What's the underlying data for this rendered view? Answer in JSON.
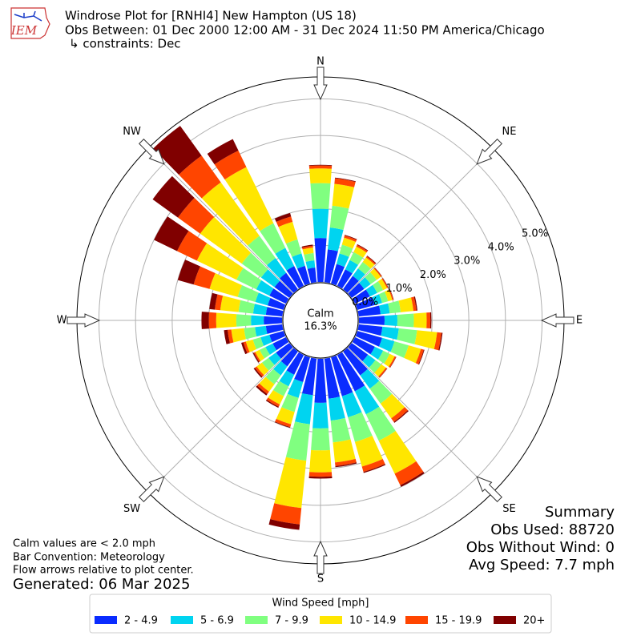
{
  "chart_data": {
    "type": "windrose",
    "title": "Windrose Plot for [RNHI4] New Hampton (US 18)",
    "subtitle": "Obs Between: 01 Dec 2000 12:00 AM - 31 Dec 2024 11:50 PM America/Chicago",
    "constraints": "↳ constraints: Dec",
    "logo_text": "IEM",
    "compass": [
      "N",
      "NE",
      "E",
      "SE",
      "S",
      "SW",
      "W",
      "NW"
    ],
    "x": [
      0,
      10,
      20,
      30,
      40,
      50,
      60,
      70,
      80,
      90,
      100,
      110,
      120,
      130,
      140,
      150,
      160,
      170,
      180,
      190,
      200,
      210,
      220,
      230,
      240,
      250,
      260,
      270,
      280,
      290,
      300,
      310,
      320,
      330,
      340,
      350
    ],
    "ylim": [
      0,
      5.6
    ],
    "yticks": [
      {
        "value": 0,
        "label": "0.0%"
      },
      {
        "value": 1,
        "label": "1.0%"
      },
      {
        "value": 2,
        "label": "2.0%"
      },
      {
        "value": 3,
        "label": "3.0%"
      },
      {
        "value": 4,
        "label": "4.0%"
      },
      {
        "value": 5,
        "label": "5.0%"
      }
    ],
    "grid": true,
    "calm_label": "Calm",
    "calm_value": 16.3,
    "calm_value_label": "16.3%",
    "legend_title": "Wind Speed [mph]",
    "series": [
      {
        "name": "2 - 4.9",
        "color": "#0a2cff",
        "values": [
          1.2,
          0.9,
          0.55,
          0.5,
          0.45,
          0.42,
          0.45,
          0.5,
          0.6,
          0.7,
          0.65,
          0.7,
          0.6,
          0.55,
          0.8,
          1.1,
          1.1,
          1.1,
          1.2,
          1.0,
          0.7,
          0.6,
          0.5,
          0.45,
          0.4,
          0.4,
          0.45,
          0.5,
          0.45,
          0.45,
          0.5,
          0.5,
          0.55,
          0.6,
          0.5,
          0.4
        ]
      },
      {
        "name": "5 - 6.9",
        "color": "#00d4f0",
        "values": [
          0.8,
          0.6,
          0.3,
          0.28,
          0.25,
          0.22,
          0.22,
          0.2,
          0.25,
          0.35,
          0.45,
          0.35,
          0.25,
          0.25,
          0.45,
          0.7,
          0.6,
          0.6,
          0.7,
          0.8,
          0.45,
          0.35,
          0.3,
          0.25,
          0.22,
          0.25,
          0.3,
          0.35,
          0.35,
          0.35,
          0.4,
          0.45,
          0.5,
          0.55,
          0.35,
          0.2
        ]
      },
      {
        "name": "7 - 9.9",
        "color": "#80ff80",
        "values": [
          0.7,
          0.6,
          0.25,
          0.24,
          0.22,
          0.2,
          0.18,
          0.17,
          0.3,
          0.45,
          0.5,
          0.4,
          0.2,
          0.2,
          0.5,
          0.8,
          0.7,
          0.6,
          0.6,
          1.0,
          0.4,
          0.3,
          0.3,
          0.22,
          0.18,
          0.22,
          0.3,
          0.4,
          0.4,
          0.5,
          0.6,
          0.65,
          0.75,
          0.75,
          0.4,
          0.2
        ]
      },
      {
        "name": "10 - 14.9",
        "color": "#ffe600",
        "values": [
          0.4,
          0.6,
          0.2,
          0.17,
          0.15,
          0.14,
          0.12,
          0.12,
          0.35,
          0.35,
          0.55,
          0.35,
          0.15,
          0.15,
          0.5,
          1.0,
          0.7,
          0.55,
          0.6,
          1.3,
          0.35,
          0.25,
          0.25,
          0.18,
          0.13,
          0.2,
          0.35,
          0.55,
          0.5,
          0.8,
          1.2,
          1.4,
          1.8,
          1.7,
          0.5,
          0.15
        ]
      },
      {
        "name": "15 - 19.9",
        "color": "#ff4500",
        "values": [
          0.08,
          0.15,
          0.06,
          0.05,
          0.04,
          0.03,
          0.03,
          0.03,
          0.08,
          0.1,
          0.12,
          0.08,
          0.04,
          0.04,
          0.12,
          0.35,
          0.15,
          0.1,
          0.12,
          0.45,
          0.08,
          0.07,
          0.08,
          0.06,
          0.04,
          0.07,
          0.1,
          0.2,
          0.15,
          0.45,
          0.6,
          0.75,
          0.9,
          0.5,
          0.15,
          0.05
        ]
      },
      {
        "name": "20+",
        "color": "#800000",
        "values": [
          0.02,
          0.02,
          0.02,
          0.02,
          0.02,
          0.01,
          0.01,
          0.01,
          0.03,
          0.03,
          0.03,
          0.02,
          0.01,
          0.01,
          0.03,
          0.05,
          0.03,
          0.03,
          0.05,
          0.15,
          0.02,
          0.03,
          0.05,
          0.04,
          0.03,
          0.06,
          0.1,
          0.2,
          0.15,
          0.45,
          0.7,
          0.85,
          1.0,
          0.35,
          0.1,
          0.03
        ]
      }
    ],
    "notes": [
      "Calm values are < 2.0 mph",
      "Bar Convention: Meteorology",
      "Flow arrows relative to plot center."
    ],
    "generated": "Generated: 06 Mar 2025",
    "summary": [
      "Summary",
      "Obs Used: 88720",
      "Obs Without Wind: 0",
      "Avg Speed: 7.7 mph"
    ]
  }
}
